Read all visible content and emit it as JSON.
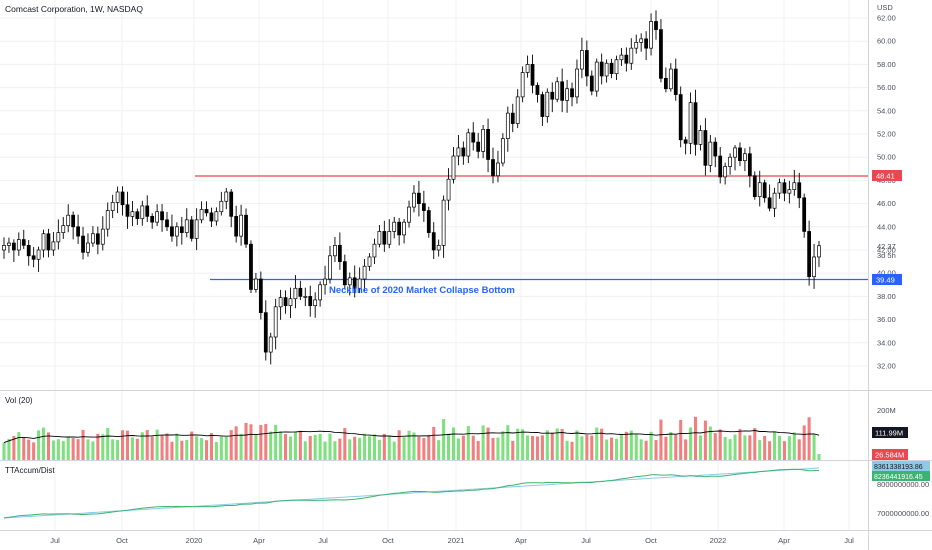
{
  "header": {
    "title": "Comcast Corporation, 1W, NASDAQ",
    "currency": "USD"
  },
  "colors": {
    "up": "#ffffff",
    "down": "#000000",
    "wick": "#000000",
    "resistance": "#e8484f",
    "support": "#2962ff",
    "annotation": "#2962ff",
    "vol_up": "#7fe07f",
    "vol_down": "#f07f7f",
    "vol_ma": "#000000",
    "accum_line": "#3cb371",
    "accum_ref": "#8ecae6",
    "grid": "#eef0f3"
  },
  "annotation": {
    "neckline_text": "Neckline of 2020 Market Collapse Bottom"
  },
  "price_labels": {
    "resistance": "48.41",
    "current": "42.37",
    "countdown": "3d 5h",
    "support": "39.49"
  },
  "volume_pane": {
    "title": "Vol (20)",
    "axis_label": "200M",
    "ma_label": "111.99M",
    "last_label": "26.584M"
  },
  "accum_pane": {
    "title": "TTAccum/Dist",
    "label_ref": "8361338193.86",
    "label_main": "8236441916.45",
    "axis_top": "8000000000.00",
    "axis_bottom": "7000000000.00"
  },
  "chart_data": {
    "type": "candlestick",
    "title": "Comcast Corporation, 1W, NASDAQ",
    "ylim": [
      31,
      62.2
    ],
    "y_ticks": [
      "62.00",
      "60.00",
      "58.00",
      "56.00",
      "54.00",
      "52.00",
      "50.00",
      "48.00",
      "46.00",
      "44.00",
      "42.00",
      "40.00",
      "38.00",
      "36.00",
      "34.00",
      "32.00"
    ],
    "x_ticks": [
      "Jul",
      "Oct",
      "2020",
      "Apr",
      "Jul",
      "Oct",
      "2021",
      "Apr",
      "Jul",
      "Oct",
      "2022",
      "Apr",
      "Jul"
    ],
    "horizontal_lines": [
      {
        "value": 48.41,
        "label": "48.41"
      },
      {
        "value": 39.49,
        "label": "39.49"
      }
    ],
    "closes": [
      42.4,
      42.6,
      42.0,
      42.9,
      42.4,
      41.5,
      41.2,
      42.0,
      43.4,
      42.0,
      42.7,
      43.5,
      44.1,
      45.0,
      44.0,
      43.2,
      41.8,
      42.6,
      43.4,
      42.5,
      43.8,
      45.4,
      46.1,
      47.0,
      45.9,
      44.9,
      45.3,
      44.7,
      45.8,
      44.9,
      44.4,
      45.3,
      44.6,
      44.0,
      43.2,
      44.0,
      43.5,
      44.6,
      43.0,
      44.6,
      45.5,
      45.2,
      44.5,
      45.3,
      46.2,
      47.0,
      44.9,
      43.2,
      45.0,
      42.5,
      38.6,
      39.5,
      36.6,
      33.2,
      34.5,
      37.1,
      37.9,
      37.2,
      37.8,
      38.7,
      38.0,
      38.0,
      37.2,
      37.7,
      39.0,
      39.5,
      41.5,
      42.4,
      41.0,
      39.0,
      39.6,
      38.7,
      39.5,
      40.6,
      41.4,
      42.5,
      43.6,
      42.5,
      43.6,
      44.4,
      43.3,
      44.4,
      45.7,
      46.9,
      46.0,
      45.4,
      43.5,
      42.0,
      42.4,
      46.3,
      48.1,
      50.1,
      50.8,
      50.1,
      52.1,
      51.3,
      50.5,
      52.4,
      49.8,
      48.4,
      49.5,
      51.6,
      53.8,
      52.9,
      55.2,
      57.3,
      58.0,
      56.2,
      55.4,
      53.5,
      55.6,
      55.0,
      56.5,
      54.9,
      55.9,
      55.2,
      57.6,
      59.2,
      57.0,
      55.7,
      58.2,
      57.0,
      58.1,
      57.2,
      58.4,
      58.8,
      58.1,
      59.4,
      59.9,
      60.2,
      59.4,
      61.7,
      61.0,
      56.8,
      55.9,
      57.6,
      55.4,
      51.5,
      51.2,
      54.7,
      51.1,
      52.3,
      49.3,
      51.3,
      50.1,
      48.3,
      49.2,
      50.0,
      50.8,
      49.7,
      50.3,
      48.4,
      46.6,
      47.8,
      46.5,
      45.6,
      46.9,
      47.8,
      46.9,
      47.2,
      47.8,
      46.5,
      43.6,
      39.7,
      41.4,
      42.37
    ],
    "volume_ma_last": 111.99,
    "volume_last": 26.584,
    "accum_dist_last": 8236441916.45,
    "accum_ref_last": 8361338193.86
  }
}
